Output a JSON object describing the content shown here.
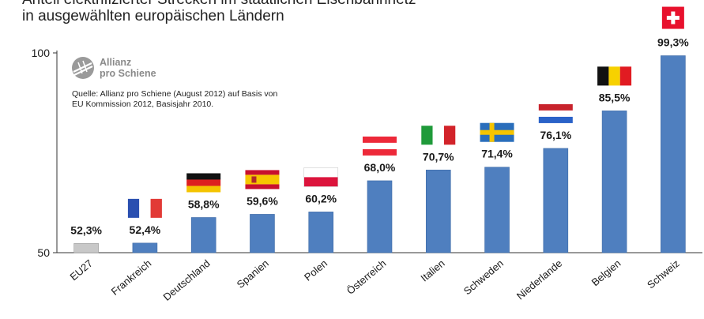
{
  "header": {
    "title": "Anteil elektrifizierter Strecken im staatlichen Eisenbahnnetz",
    "subtitle": "in ausgewählten europäischen Ländern"
  },
  "logo": {
    "line1": "Allianz",
    "line2": "pro Schiene"
  },
  "source": {
    "line1": "Quelle: Allianz pro Schiene (August 2012) auf Basis von",
    "line2": "EU Kommission 2012, Basisjahr 2010."
  },
  "colors": {
    "bar": "#4f7fbf",
    "bar_highlight": "#c8c8c8",
    "axis": "#333333"
  },
  "chart_data": {
    "type": "bar",
    "categories": [
      "EU27",
      "Frankreich",
      "Deutschland",
      "Spanien",
      "Polen",
      "Österreich",
      "Italien",
      "Schweden",
      "Niederlande",
      "Belgien",
      "Schweiz"
    ],
    "values": [
      52.3,
      52.4,
      58.8,
      59.6,
      60.2,
      68.0,
      70.7,
      71.4,
      76.1,
      85.5,
      99.3
    ],
    "value_labels": [
      "52,3%",
      "52,4%",
      "58,8%",
      "59,6%",
      "60,2%",
      "68,0%",
      "70,7%",
      "71,4%",
      "76,1%",
      "85,5%",
      "99,3%"
    ],
    "flags": [
      "",
      "france-flag",
      "germany-flag",
      "spain-flag",
      "poland-flag",
      "austria-flag",
      "italy-flag",
      "sweden-flag",
      "netherlands-flag",
      "belgium-flag",
      "switzerland-flag"
    ],
    "ylim": [
      50,
      100
    ],
    "yticks": [
      "50",
      "100"
    ],
    "grid": false,
    "xlabel": "",
    "ylabel": ""
  }
}
